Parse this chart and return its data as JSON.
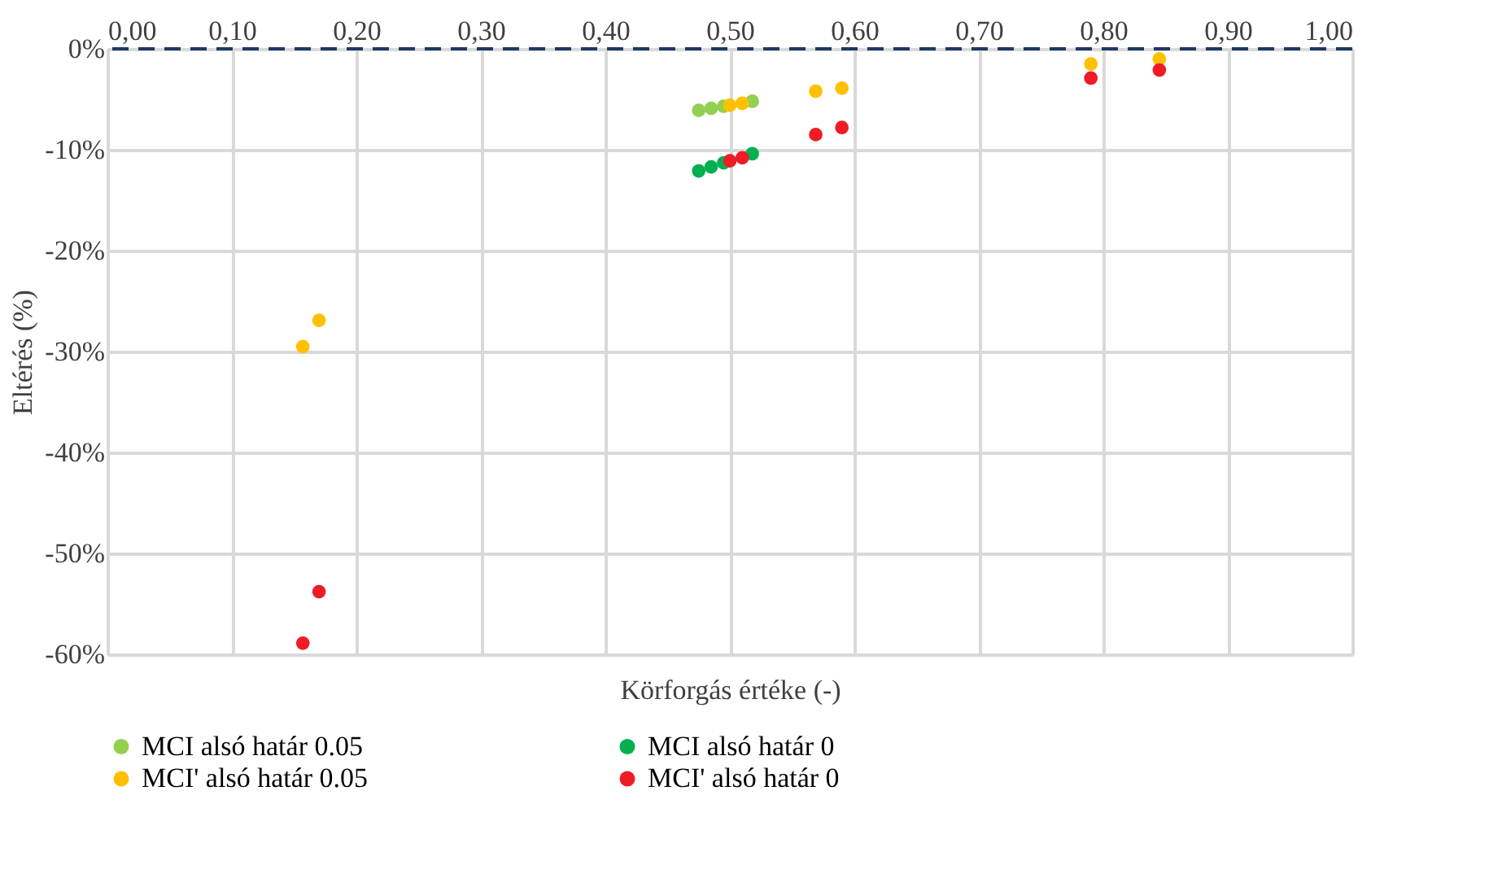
{
  "chart_data": {
    "type": "scatter",
    "xlabel": "Körforgás értéke (-)",
    "ylabel": "Eltérés (%)",
    "xlim": [
      0,
      1
    ],
    "xticks": [
      {
        "value": 0,
        "label": "0,00"
      },
      {
        "value": 0.1,
        "label": "0,10"
      },
      {
        "value": 0.2,
        "label": "0,20"
      },
      {
        "value": 0.3,
        "label": "0,30"
      },
      {
        "value": 0.4,
        "label": "0,40"
      },
      {
        "value": 0.5,
        "label": "0,50"
      },
      {
        "value": 0.6,
        "label": "0,60"
      },
      {
        "value": 0.7,
        "label": "0,70"
      },
      {
        "value": 0.8,
        "label": "0,80"
      },
      {
        "value": 0.9,
        "label": "0,90"
      },
      {
        "value": 1,
        "label": "1,00"
      }
    ],
    "ylim": [
      -60,
      0
    ],
    "yticks": [
      {
        "value": -60,
        "label": "-60%"
      },
      {
        "value": -50,
        "label": "-50%"
      },
      {
        "value": -40,
        "label": "-40%"
      },
      {
        "value": -30,
        "label": "-30%"
      },
      {
        "value": -20,
        "label": "-20%"
      },
      {
        "value": -10,
        "label": "-10%"
      },
      {
        "value": 0,
        "label": "0%"
      }
    ],
    "grid": true,
    "legend": "bottom",
    "marker": "circle",
    "ref_lines": [
      {
        "axis": "y",
        "value": 0,
        "color": "#1f3864",
        "line_style": "dashed"
      }
    ],
    "series": [
      {
        "name": "MCI alsó határ 0.05",
        "color": "#92d050",
        "x": [
          0.475,
          0.485,
          0.495,
          0.505,
          0.518
        ],
        "values": [
          -6.1,
          -5.9,
          -5.7,
          null,
          -5.2
        ]
      },
      {
        "name": "MCI alsó határ 0",
        "color": "#00b050",
        "x": [
          0.475,
          0.485,
          0.495,
          0.505,
          0.518
        ],
        "values": [
          -12.1,
          -11.7,
          -11.3,
          null,
          -10.4
        ]
      },
      {
        "name": "MCI' alsó határ 0.05",
        "color": "#ffc000",
        "x": [
          0.157,
          0.17,
          0.5,
          0.51,
          0.569,
          0.59,
          0.79,
          0.845
        ],
        "values": [
          -29.5,
          -26.9,
          -5.6,
          -5.4,
          -4.2,
          -3.9,
          -1.5,
          -1.0
        ]
      },
      {
        "name": "MCI' alsó határ 0",
        "color": "#ee1c25",
        "x": [
          0.157,
          0.17,
          0.5,
          0.51,
          0.569,
          0.59,
          0.79,
          0.845
        ],
        "values": [
          -58.9,
          -53.8,
          -11.1,
          -10.8,
          -8.5,
          -7.8,
          -2.9,
          -2.1
        ]
      }
    ]
  }
}
